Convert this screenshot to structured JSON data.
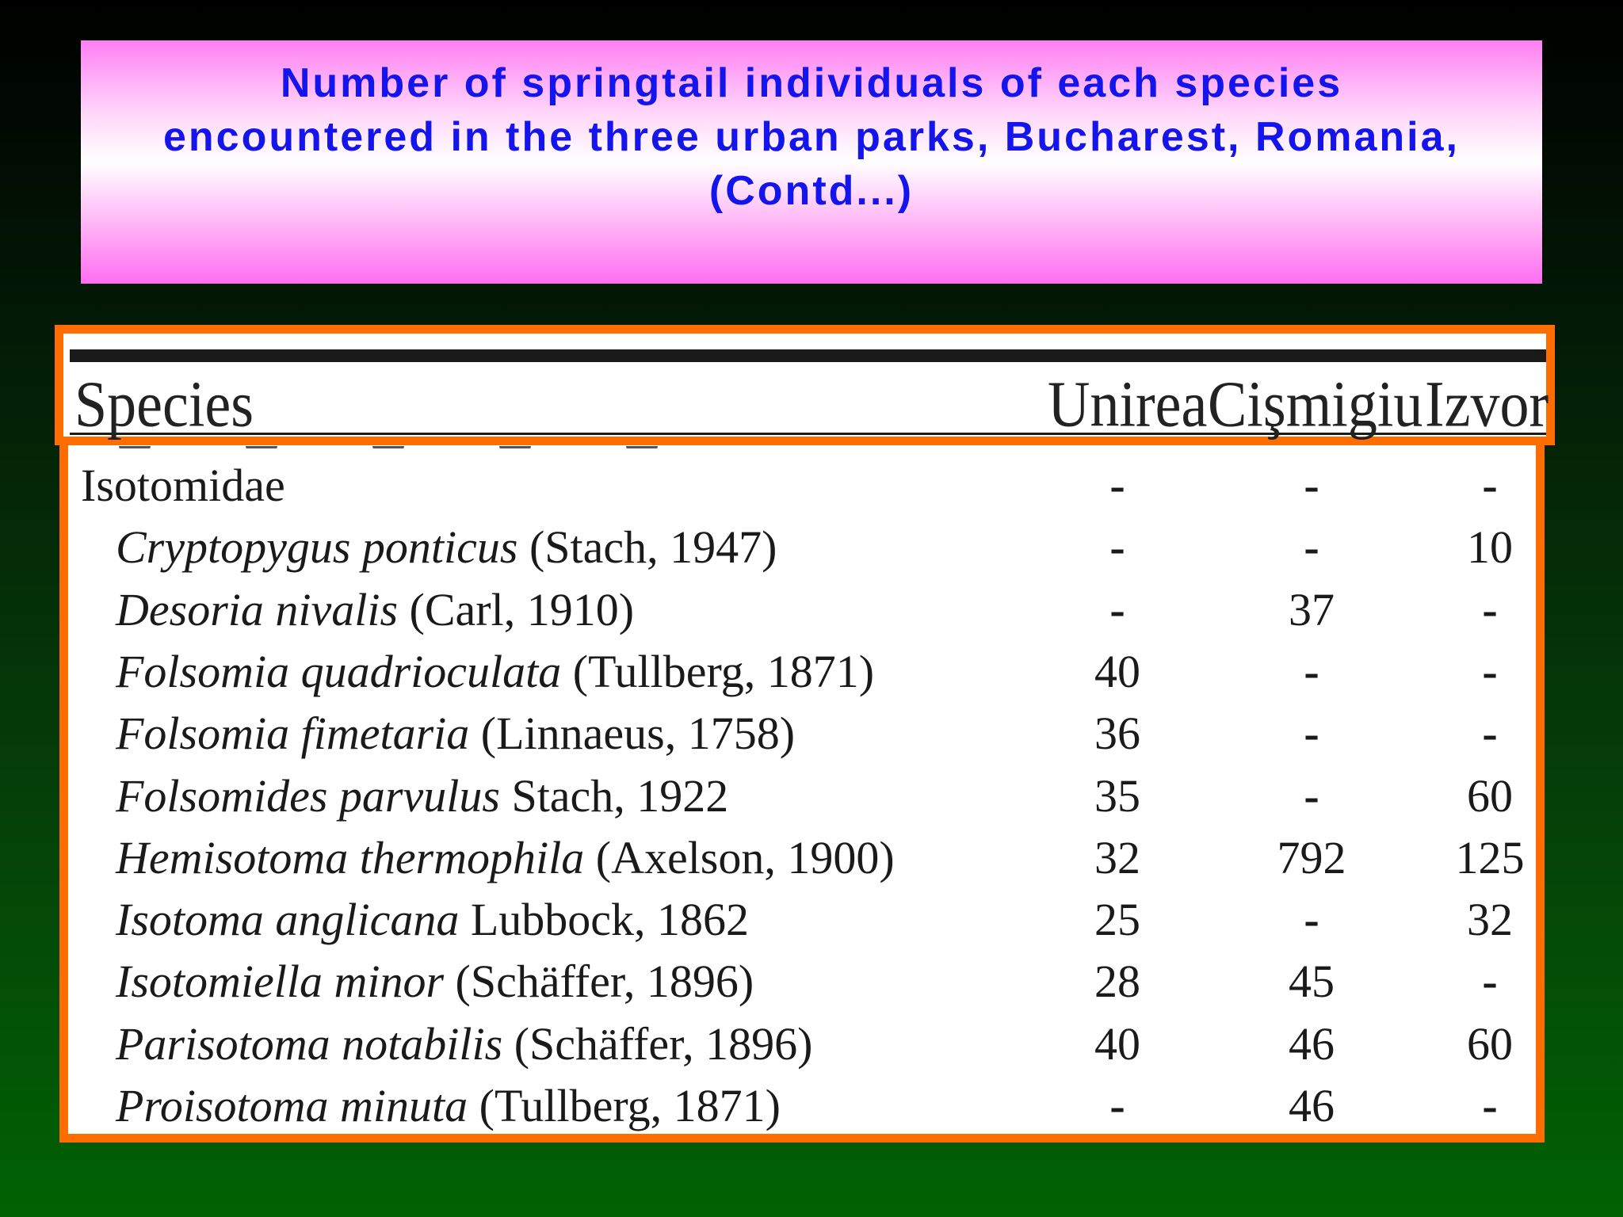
{
  "title": {
    "lines": [
      "Number of springtail individuals of each species",
      "encountered in the three urban parks, Bucharest, Romania,",
      "(Contd...)"
    ]
  },
  "table": {
    "headers": {
      "species": "Species",
      "unirea": "Unirea",
      "cismigiu": "Cişmigiu",
      "izvor": "Izvor"
    },
    "rows": [
      {
        "genus": "",
        "author": "Isotomidae",
        "unirea": "-",
        "cismigiu": "-",
        "izvor": "-"
      },
      {
        "genus": "Cryptopygus ponticus",
        "author": " (Stach, 1947)",
        "unirea": "-",
        "cismigiu": "-",
        "izvor": "10"
      },
      {
        "genus": "Desoria nivalis",
        "author": " (Carl, 1910)",
        "unirea": "-",
        "cismigiu": "37",
        "izvor": "-"
      },
      {
        "genus": "Folsomia quadrioculata",
        "author": " (Tullberg, 1871)",
        "unirea": "40",
        "cismigiu": "-",
        "izvor": "-"
      },
      {
        "genus": "Folsomia fimetaria",
        "author": " (Linnaeus, 1758)",
        "unirea": "36",
        "cismigiu": "-",
        "izvor": "-"
      },
      {
        "genus": "Folsomides parvulus",
        "author": " Stach, 1922",
        "unirea": "35",
        "cismigiu": "-",
        "izvor": "60"
      },
      {
        "genus": "Hemisotoma thermophila",
        "author": " (Axelson, 1900)",
        "unirea": "32",
        "cismigiu": "792",
        "izvor": "125"
      },
      {
        "genus": "Isotoma anglicana",
        "author": " Lubbock, 1862",
        "unirea": "25",
        "cismigiu": "-",
        "izvor": "32"
      },
      {
        "genus": "Isotomiella minor",
        "author": " (Schäffer, 1896)",
        "unirea": "28",
        "cismigiu": "45",
        "izvor": "-"
      },
      {
        "genus": "Parisotoma notabilis",
        "author": " (Schäffer, 1896)",
        "unirea": "40",
        "cismigiu": "46",
        "izvor": "60"
      },
      {
        "genus": "Proisotoma minuta",
        "author": " (Tullberg, 1871)",
        "unirea": "-",
        "cismigiu": "46",
        "izvor": "-"
      }
    ]
  },
  "colors": {
    "frame": "#ff6c00",
    "title_text": "#1414ec"
  }
}
